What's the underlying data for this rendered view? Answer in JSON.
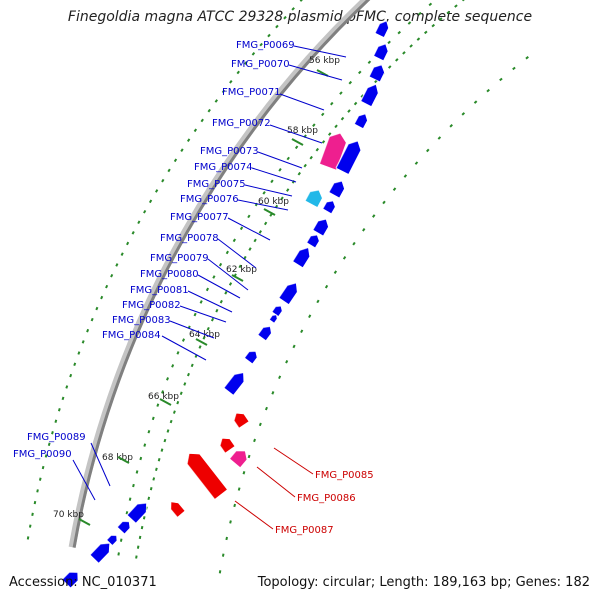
{
  "title": "Finegoldia magna ATCC 29328 plasmid pFMC, complete sequence",
  "accession": "Accession: NC_010371",
  "summary": "Topology: circular; Length: 189,163 bp; Genes: 182",
  "colors": {
    "gene_forward": "#0000ee",
    "gene_reverse": "#ee0000",
    "gene_magenta": "#ee1f8f",
    "gene_cyan": "#22b8e8",
    "label_forward": "#0000cc",
    "label_reverse": "#cc0000",
    "backbone": "#808080",
    "dotted_track": "#2a8a2a"
  },
  "scale_labels": [
    "56 kbp",
    "58 kbp",
    "60 kbp",
    "62 kbp",
    "64 kbp",
    "66 kbp",
    "68 kbp",
    "70 kbp"
  ],
  "forward_labels": [
    "FMG_P0069",
    "FMG_P0070",
    "FMG_P0071",
    "FMG_P0072",
    "FMG_P0073",
    "FMG_P0074",
    "FMG_P0075",
    "FMG_P0076",
    "FMG_P0077",
    "FMG_P0078",
    "FMG_P0079",
    "FMG_P0080",
    "FMG_P0081",
    "FMG_P0082",
    "FMG_P0083",
    "FMG_P0084",
    "FMG_P0089",
    "FMG_P0090"
  ],
  "reverse_labels": [
    "FMG_P0085",
    "FMG_P0086",
    "FMG_P0087"
  ]
}
